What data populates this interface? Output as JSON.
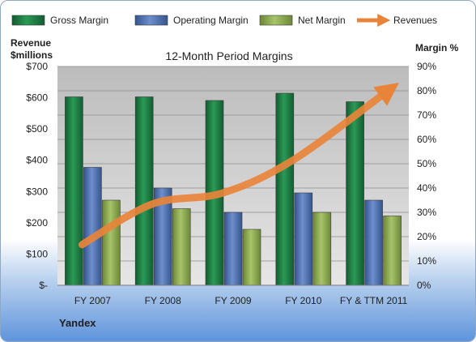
{
  "chart_data": {
    "type": "bar",
    "title": "12-Month Period Margins",
    "company": "Yandex",
    "categories": [
      "FY 2007",
      "FY 2008",
      "FY 2009",
      "FY 2010",
      "FY & TTM 2011"
    ],
    "series": [
      {
        "name": "Gross Margin",
        "axis": "right",
        "values": [
          77.5,
          77.5,
          76,
          79,
          75.5
        ],
        "color": "#1e7a43"
      },
      {
        "name": "Operating Margin",
        "axis": "right",
        "values": [
          48.5,
          40,
          30,
          38,
          35
        ],
        "color": "#4a6fb0"
      },
      {
        "name": "Net Margin",
        "axis": "right",
        "values": [
          35,
          31.5,
          23,
          30,
          28.5
        ],
        "color": "#8aa84c"
      },
      {
        "name": "Revenues",
        "axis": "left",
        "type": "line",
        "values": [
          130,
          260,
          295,
          400,
          617
        ],
        "color": "#e8843a"
      }
    ],
    "ylabel_left": [
      "Revenue",
      "$millions"
    ],
    "ylabel_right": "Margin %",
    "left_axis": {
      "ylim": [
        0,
        700
      ],
      "ticks": [
        "$-",
        "$100",
        "$200",
        "$300",
        "$400",
        "$500",
        "$600",
        "$700"
      ]
    },
    "right_axis": {
      "ylim": [
        0,
        90
      ],
      "ticks": [
        "0%",
        "10%",
        "20%",
        "30%",
        "40%",
        "50%",
        "60%",
        "70%",
        "80%",
        "90%"
      ]
    },
    "legend_position": "top",
    "grid": true
  }
}
